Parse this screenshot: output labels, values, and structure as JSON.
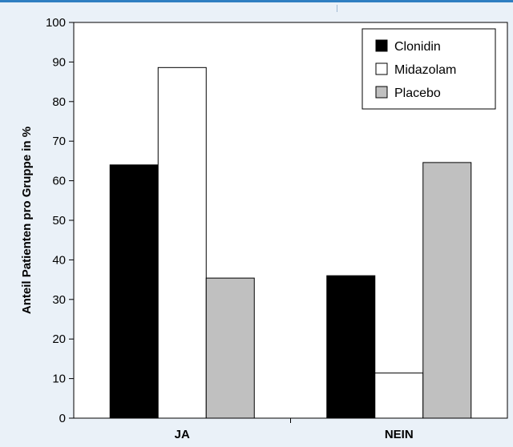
{
  "chart_data": {
    "type": "bar",
    "title": "",
    "xlabel": "",
    "ylabel": "Anteil Patienten pro Gruppe in %",
    "ylim": [
      0,
      100
    ],
    "yticks": [
      0,
      10,
      20,
      30,
      40,
      50,
      60,
      70,
      80,
      90,
      100
    ],
    "categories": [
      "JA",
      "NEIN"
    ],
    "series": [
      {
        "name": "Clonidin",
        "values": [
          64,
          36
        ],
        "color": "#000000"
      },
      {
        "name": "Midazolam",
        "values": [
          88.6,
          11.4
        ],
        "color": "#ffffff"
      },
      {
        "name": "Placebo",
        "values": [
          35.4,
          64.6
        ],
        "color": "#c0c0c0"
      }
    ],
    "grid": false,
    "legend_position": "top-right"
  }
}
